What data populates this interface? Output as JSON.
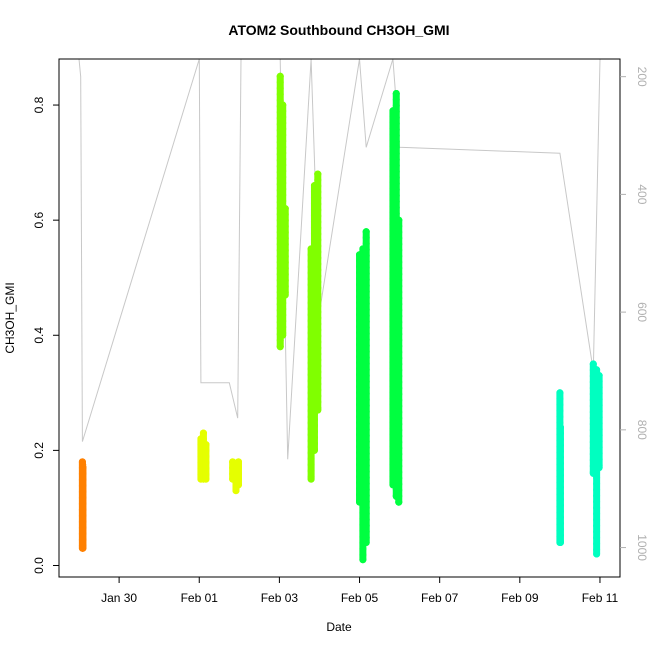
{
  "chart_data": {
    "type": "scatter",
    "title": "ATOM2 Southbound CH3OH_GMI",
    "xlabel": "Date",
    "ylabel": "CH3OH_GMI",
    "xlim": [
      "2017-01-28T12:00",
      "2017-02-11T12:00"
    ],
    "ylim": [
      -0.02,
      0.88
    ],
    "x_ticks": [
      {
        "date": "2017-01-30",
        "label": "Jan 30"
      },
      {
        "date": "2017-02-01",
        "label": "Feb 01"
      },
      {
        "date": "2017-02-03",
        "label": "Feb 03"
      },
      {
        "date": "2017-02-05",
        "label": "Feb 05"
      },
      {
        "date": "2017-02-07",
        "label": "Feb 07"
      },
      {
        "date": "2017-02-09",
        "label": "Feb 09"
      },
      {
        "date": "2017-02-11",
        "label": "Feb 11"
      }
    ],
    "y_ticks": [
      0.0,
      0.2,
      0.4,
      0.6,
      0.8
    ],
    "y_tick_labels": [
      "0.0",
      "0.2",
      "0.4",
      "0.6",
      "0.8"
    ],
    "right_axis": {
      "ylim": [
        1050,
        170
      ],
      "ticks": [
        200,
        400,
        600,
        800,
        1000
      ],
      "tick_labels": [
        "200",
        "400",
        "600",
        "800",
        "1000"
      ],
      "color": "#b0b0b0"
    },
    "grid": false,
    "series": [
      {
        "color": "#ff8000",
        "x": [
          "2017-01-29T02:00",
          "2017-01-29T02:10",
          "2017-01-29T02:20"
        ],
        "ymin": [
          0.03,
          0.03,
          0.03
        ],
        "ymax": [
          0.18,
          0.175,
          0.17
        ]
      },
      {
        "color": "#e5ff00",
        "x": [
          "2017-02-01T01:00",
          "2017-02-01T02:30",
          "2017-02-01T04:00",
          "2017-02-01T20:00",
          "2017-02-01T22:00",
          "2017-02-01T23:30"
        ],
        "ymin": [
          0.15,
          0.15,
          0.15,
          0.15,
          0.13,
          0.14
        ],
        "ymax": [
          0.22,
          0.23,
          0.21,
          0.18,
          0.17,
          0.18
        ]
      },
      {
        "color": "#80ff00",
        "x": [
          "2017-02-03T00:30",
          "2017-02-03T02:00",
          "2017-02-03T03:30",
          "2017-02-03T19:00",
          "2017-02-03T21:00",
          "2017-02-03T23:00"
        ],
        "ymin": [
          0.38,
          0.4,
          0.47,
          0.15,
          0.2,
          0.27
        ],
        "ymax": [
          0.85,
          0.8,
          0.62,
          0.55,
          0.66,
          0.68
        ]
      },
      {
        "color": "#00ff40",
        "x": [
          "2017-02-05T00:00",
          "2017-02-05T02:00",
          "2017-02-05T04:00",
          "2017-02-05T20:00",
          "2017-02-05T22:00",
          "2017-02-05T23:30"
        ],
        "ymin": [
          0.11,
          0.01,
          0.04,
          0.14,
          0.12,
          0.11
        ],
        "ymax": [
          0.54,
          0.55,
          0.58,
          0.79,
          0.82,
          0.6
        ]
      },
      {
        "color": "#00ffc0",
        "x": [
          "2017-02-10T00:00",
          "2017-02-10T00:20",
          "2017-02-10T20:00",
          "2017-02-10T22:00",
          "2017-02-10T23:30"
        ],
        "ymin": [
          0.04,
          0.04,
          0.16,
          0.02,
          0.17
        ],
        "ymax": [
          0.3,
          0.24,
          0.35,
          0.34,
          0.33
        ]
      }
    ],
    "pressure_profile": {
      "color": "#c8c8c8",
      "x": [
        "2017-01-29T00:00",
        "2017-01-29T01:00",
        "2017-01-29T02:00",
        "2017-02-01T00:00",
        "2017-02-01T01:00",
        "2017-02-01T03:00",
        "2017-02-01T18:00",
        "2017-02-01T23:00",
        "2017-02-02T01:00",
        "2017-02-03T00:30",
        "2017-02-03T05:00",
        "2017-02-03T19:00",
        "2017-02-04T00:00",
        "2017-02-05T00:00",
        "2017-02-05T04:00",
        "2017-02-05T20:00",
        "2017-02-06T00:00",
        "2017-02-10T00:00",
        "2017-02-10T20:00",
        "2017-02-11T00:00"
      ],
      "y": [
        170,
        200,
        820,
        170,
        720,
        720,
        720,
        780,
        170,
        170,
        850,
        170,
        600,
        170,
        320,
        170,
        320,
        330,
        700,
        170
      ]
    }
  }
}
